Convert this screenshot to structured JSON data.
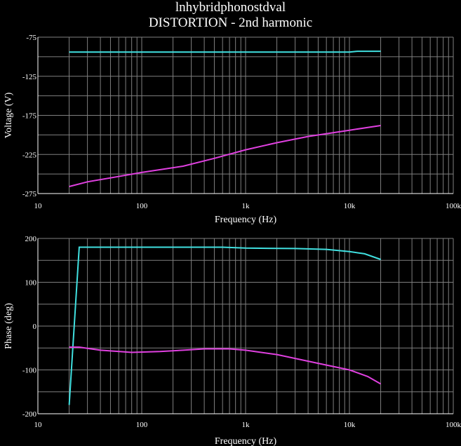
{
  "title": "lnhybridphonostdval",
  "subtitle": "DISTORTION - 2nd harmonic",
  "colors": {
    "background": "#000000",
    "grid": "#7f7f7f",
    "series_cyan": "#40e0e0",
    "series_magenta": "#e040e0",
    "text": "#ffffff"
  },
  "chart_data": [
    {
      "type": "line",
      "xlabel": "Frequency (Hz)",
      "ylabel": "Voltage (V)",
      "x_scale": "log",
      "xlim": [
        10,
        100000
      ],
      "ylim": [
        -275,
        -75
      ],
      "xticks": [
        10,
        100,
        1000,
        10000,
        100000
      ],
      "xtick_labels": [
        "10",
        "100",
        "1k",
        "10k",
        "100k"
      ],
      "yticks": [
        -75,
        -125,
        -175,
        -225,
        -275
      ],
      "ytick_labels": [
        "-75",
        "-125",
        "-175",
        "-225",
        "-275"
      ],
      "grid": true,
      "series": [
        {
          "color": "#40e0e0",
          "x": [
            20,
            100,
            1000,
            10000,
            12000,
            20000
          ],
          "y": [
            -94,
            -94,
            -94,
            -94,
            -93,
            -93
          ]
        },
        {
          "color": "#e040e0",
          "x": [
            20,
            30,
            50,
            100,
            250,
            500,
            1000,
            2000,
            4000,
            10000,
            20000
          ],
          "y": [
            -266,
            -260,
            -255,
            -248,
            -240,
            -230,
            -219,
            -210,
            -202,
            -194,
            -188
          ]
        }
      ]
    },
    {
      "type": "line",
      "xlabel": "Frequency (Hz)",
      "ylabel": "Phase (deg)",
      "x_scale": "log",
      "xlim": [
        10,
        100000
      ],
      "ylim": [
        -200,
        200
      ],
      "xticks": [
        10,
        100,
        1000,
        10000,
        100000
      ],
      "xtick_labels": [
        "10",
        "100",
        "1k",
        "10k",
        "100k"
      ],
      "yticks": [
        200,
        100,
        0,
        -100,
        -200
      ],
      "ytick_labels": [
        "200",
        "100",
        "0",
        "-100",
        "-200"
      ],
      "grid": true,
      "series": [
        {
          "color": "#40e0e0",
          "x": [
            20,
            25,
            100,
            600,
            1000,
            3000,
            6000,
            10000,
            14000,
            20000
          ],
          "y": [
            -180,
            180,
            180,
            180,
            178,
            177,
            175,
            170,
            165,
            152
          ]
        },
        {
          "color": "#e040e0",
          "x": [
            20,
            25,
            40,
            80,
            150,
            250,
            400,
            700,
            1000,
            2000,
            5000,
            10000,
            15000,
            20000
          ],
          "y": [
            -48,
            -48,
            -55,
            -60,
            -58,
            -55,
            -52,
            -52,
            -55,
            -65,
            -85,
            -100,
            -115,
            -132
          ]
        }
      ]
    }
  ]
}
